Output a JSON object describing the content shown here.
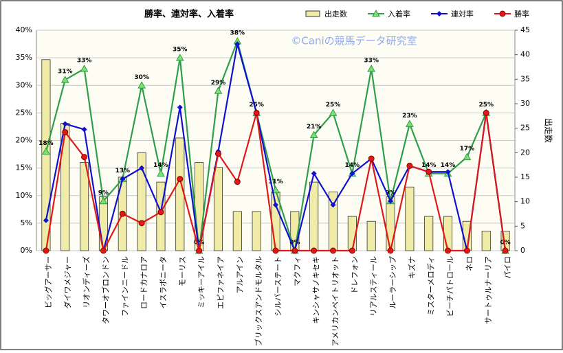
{
  "chart_data": {
    "type": "bar-line",
    "title": "勝率、連対率、入着率",
    "watermark": "©Caniの競馬データ研究室",
    "y2_label": "出走数",
    "categories": [
      "ビッグアーサー",
      "ダイワメジャー",
      "リオンディーズ",
      "タワーオブロンドン",
      "ファインニードル",
      "ロードカナロア",
      "イスラボニータ",
      "モーリス",
      "ミッキーアイル",
      "エピファネイア",
      "アルアイン",
      "ブリックスアンドモルタル",
      "シルバーステート",
      "マクフィ",
      "キンシャサノキセキ",
      "アメリカンペイトリオット",
      "ドレフォン",
      "リアルスティール",
      "ルーラーシップ",
      "キズナ",
      "ミスターメロディ",
      "ビーチパトロール",
      "ネロ",
      "サートゥルナーリア",
      "パイロ"
    ],
    "series": [
      {
        "name": "出走数",
        "kind": "bar",
        "axis": "y2",
        "color": "#f0eca8",
        "values": [
          39,
          26,
          18,
          11,
          15,
          20,
          14,
          23,
          18,
          17,
          8,
          8,
          12,
          8,
          14,
          12,
          7,
          6,
          11,
          13,
          7,
          7,
          6,
          4,
          4
        ]
      },
      {
        "name": "入着率",
        "kind": "line",
        "marker": "triangle",
        "color": "#2e9e4a",
        "values": [
          18,
          31,
          33,
          9,
          13,
          30,
          14,
          35,
          0,
          29,
          38,
          25,
          11,
          0,
          21,
          25,
          14,
          33,
          9,
          23,
          14,
          14,
          17,
          25,
          0
        ],
        "value_labels": [
          "18%",
          "31%",
          "33%",
          "9%",
          "13%",
          "30%",
          "14%",
          "35%",
          "0%",
          "29%",
          "38%",
          "25%",
          "11%",
          "0%",
          "21%",
          "25%",
          "14%",
          "33%",
          "9%",
          "23%",
          "14%",
          "14%",
          "17%",
          "25%",
          "0%"
        ]
      },
      {
        "name": "連対率",
        "kind": "line",
        "marker": "diamond",
        "color": "#1010d0",
        "values": [
          5.5,
          23,
          22,
          0,
          13,
          15,
          7,
          26,
          0,
          18,
          37.5,
          25,
          8.3,
          0,
          14,
          8.3,
          14,
          16.7,
          9,
          15.4,
          14.3,
          14.3,
          0,
          25,
          0
        ]
      },
      {
        "name": "勝率",
        "kind": "line",
        "marker": "circle",
        "color": "#e01818",
        "values": [
          0,
          21.5,
          17,
          0,
          6.7,
          5,
          7,
          13,
          0,
          17.6,
          12.5,
          25,
          0,
          0,
          0,
          0,
          0,
          16.7,
          0,
          15.4,
          14.3,
          0,
          0,
          25,
          0
        ]
      }
    ],
    "ylim": [
      0,
      40
    ],
    "yticks": [
      {
        "value": 0,
        "label": "0%"
      },
      {
        "value": 5,
        "label": "5%"
      },
      {
        "value": 10,
        "label": "10%"
      },
      {
        "value": 15,
        "label": "15%"
      },
      {
        "value": 20,
        "label": "20%"
      },
      {
        "value": 25,
        "label": "25%"
      },
      {
        "value": 30,
        "label": "30%"
      },
      {
        "value": 35,
        "label": "35%"
      },
      {
        "value": 40,
        "label": "40%"
      }
    ],
    "y2lim": [
      0,
      45
    ],
    "y2ticks": [
      0,
      5,
      10,
      15,
      20,
      25,
      30,
      35,
      40,
      45
    ],
    "grid": true,
    "legend": "top-right"
  }
}
